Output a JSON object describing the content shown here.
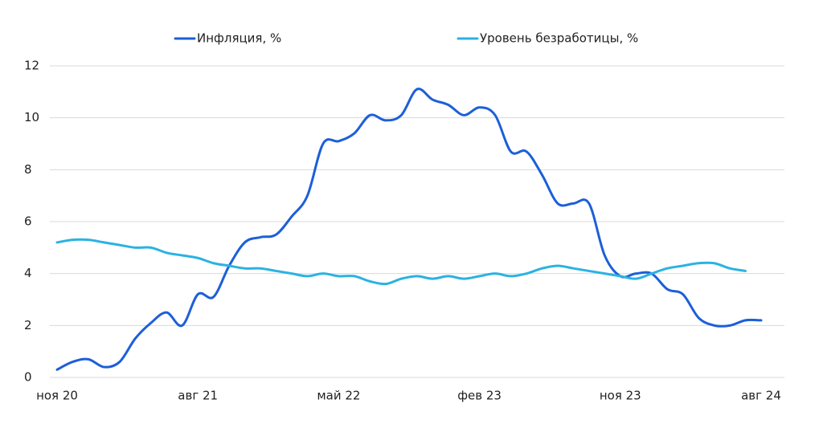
{
  "chart_data": {
    "type": "line",
    "categories": [
      "ноя 20",
      null,
      null,
      null,
      null,
      null,
      null,
      null,
      null,
      "авг 21",
      null,
      null,
      null,
      null,
      null,
      null,
      null,
      null,
      "май 22",
      null,
      null,
      null,
      null,
      null,
      null,
      null,
      null,
      "фев 23",
      null,
      null,
      null,
      null,
      null,
      null,
      null,
      null,
      "ноя 23",
      null,
      null,
      null,
      null,
      null,
      null,
      null,
      null,
      "авг 24"
    ],
    "series": [
      {
        "name": "Инфляция, %",
        "color": "#1c5fd8",
        "values": [
          0.3,
          0.6,
          0.7,
          0.4,
          0.6,
          1.5,
          2.1,
          2.5,
          2.0,
          3.2,
          3.1,
          4.3,
          5.2,
          5.4,
          5.5,
          6.2,
          7.0,
          9.0,
          9.1,
          9.4,
          10.1,
          9.9,
          10.1,
          11.1,
          10.7,
          10.5,
          10.1,
          10.4,
          10.1,
          8.7,
          8.7,
          7.8,
          6.7,
          6.7,
          6.7,
          4.7,
          3.9,
          4.0,
          4.0,
          3.4,
          3.2,
          2.3,
          2.0,
          2.0,
          2.2,
          2.2
        ]
      },
      {
        "name": "Уровень безработицы, %",
        "color": "#2bb2e2",
        "values": [
          5.2,
          5.3,
          5.3,
          5.2,
          5.1,
          5.0,
          5.0,
          4.8,
          4.7,
          4.6,
          4.4,
          4.3,
          4.2,
          4.2,
          4.1,
          4.0,
          3.9,
          4.0,
          3.9,
          3.9,
          3.7,
          3.6,
          3.8,
          3.9,
          3.8,
          3.9,
          3.8,
          3.9,
          4.0,
          3.9,
          4.0,
          4.2,
          4.3,
          4.2,
          4.1,
          4.0,
          3.9,
          3.8,
          4.0,
          4.2,
          4.3,
          4.4,
          4.4,
          4.2,
          4.1,
          null
        ]
      }
    ],
    "ylim": [
      0,
      12
    ],
    "yticks": [
      0,
      2,
      4,
      6,
      8,
      10,
      12
    ],
    "grid": true,
    "legend": "top"
  }
}
